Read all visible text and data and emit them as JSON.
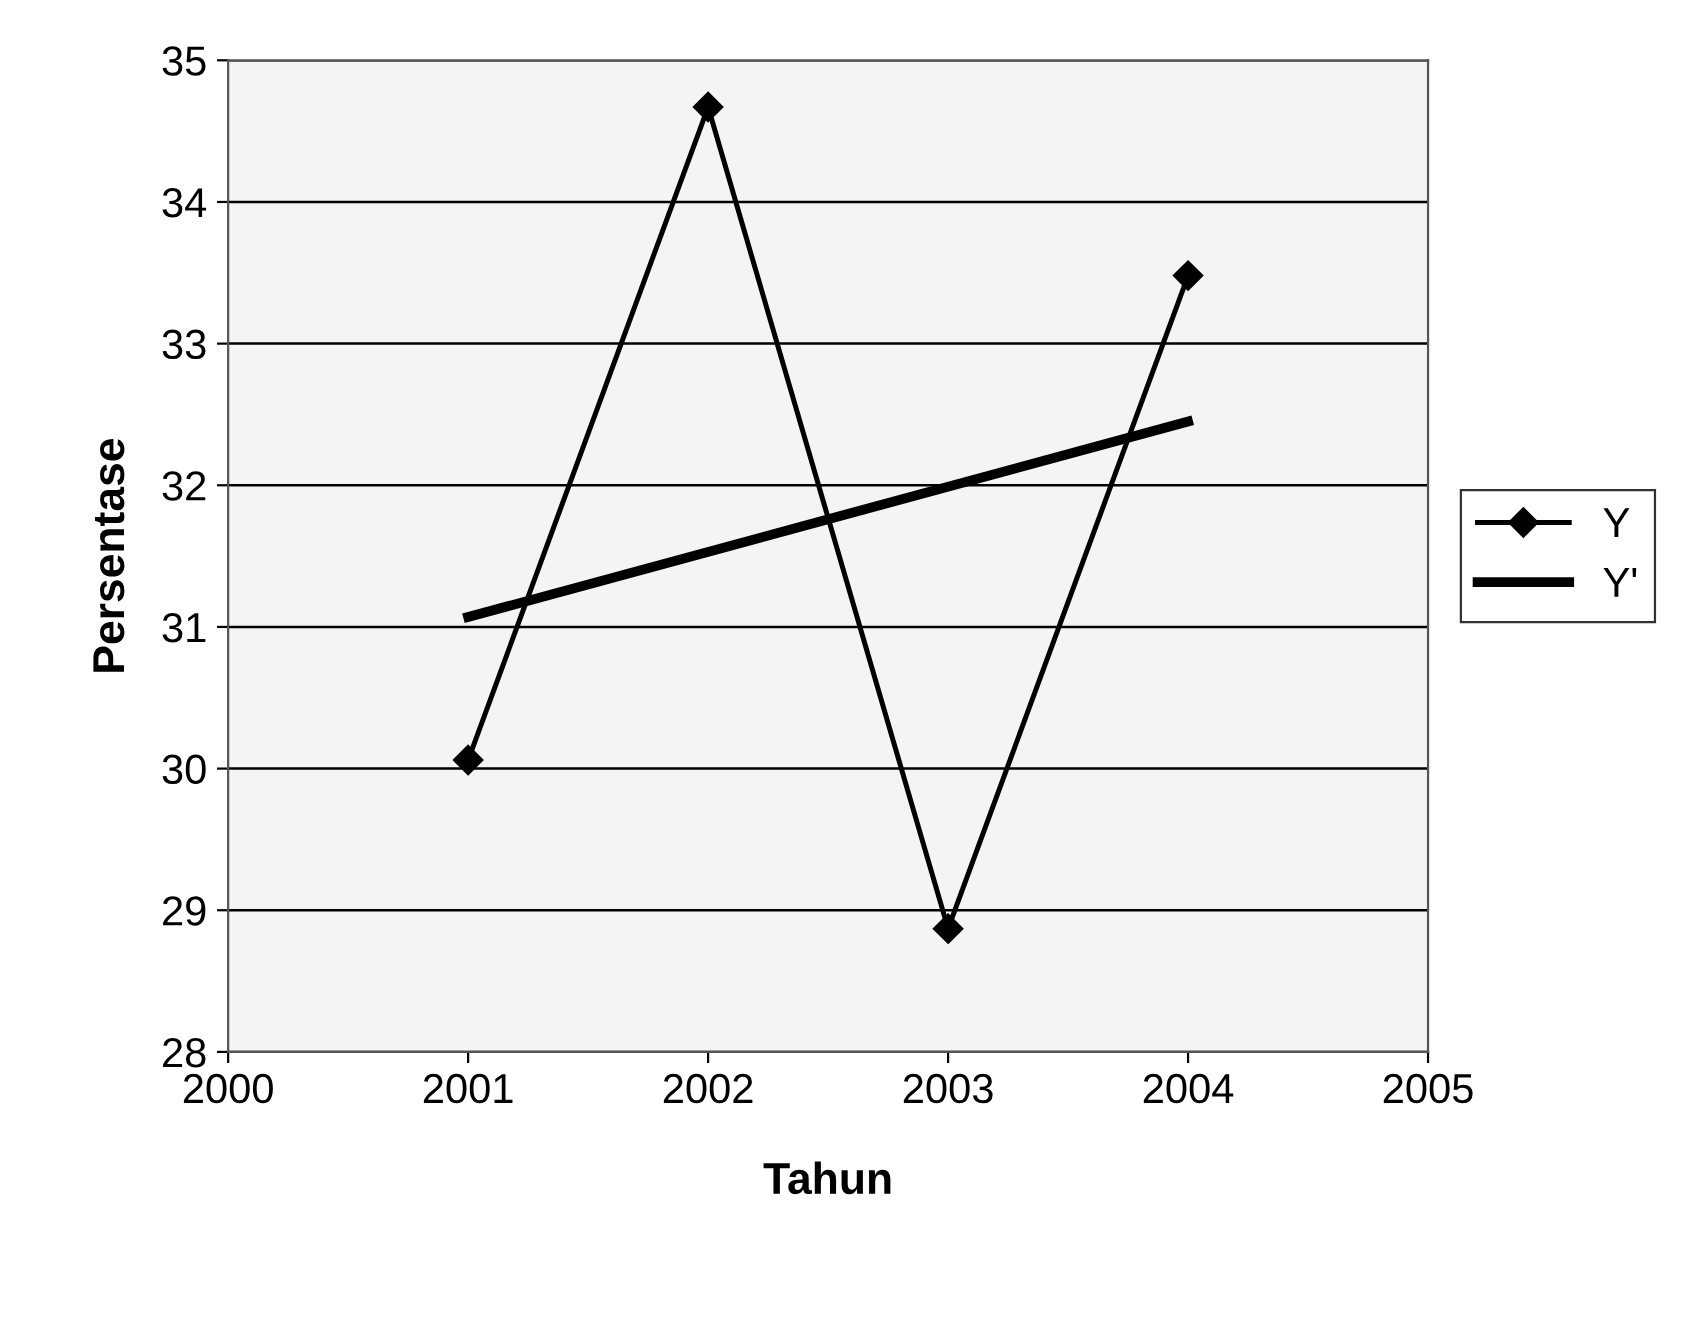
{
  "chart_data": {
    "type": "line",
    "xlabel": "Tahun",
    "ylabel": "Persentase",
    "x": [
      2001,
      2002,
      2003,
      2004
    ],
    "series": [
      {
        "name": "Y",
        "color": "#000000",
        "values": [
          30.06,
          34.67,
          28.87,
          33.48
        ],
        "marker": "diamond"
      },
      {
        "name": "Y'",
        "color": "#000000",
        "x": [
          2001,
          2004
        ],
        "values": [
          31.07,
          32.45
        ],
        "marker": "none"
      }
    ],
    "xlim": [
      2000,
      2005
    ],
    "xticks": [
      2000,
      2001,
      2002,
      2003,
      2004,
      2005
    ],
    "ylim": [
      28,
      35
    ],
    "yticks": [
      28,
      29,
      30,
      31,
      32,
      33,
      34,
      35
    ],
    "grid": "y",
    "legend": "right"
  }
}
